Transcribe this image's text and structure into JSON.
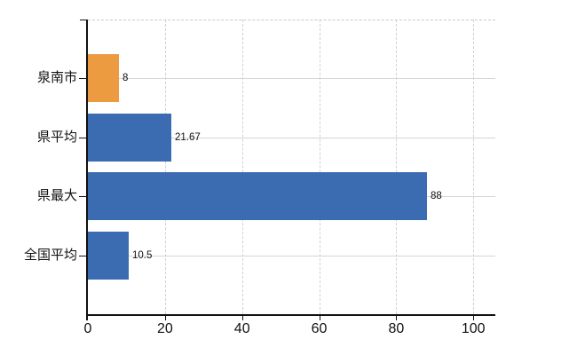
{
  "chart_data": {
    "type": "bar",
    "orientation": "horizontal",
    "title": "",
    "categories": [
      "泉南市",
      "県平均",
      "県最大",
      "全国平均"
    ],
    "values": [
      8,
      21.67,
      88,
      10.5
    ],
    "value_labels": [
      "8",
      "21.67",
      "88",
      "10.5"
    ],
    "bar_colors": [
      "#EC9B41",
      "#3B6CB1",
      "#3B6CB1",
      "#3B6CB1"
    ],
    "x_ticks": [
      0,
      20,
      40,
      60,
      80,
      100
    ],
    "x_tick_labels": [
      "0",
      "20",
      "40",
      "60",
      "80",
      "100"
    ],
    "xlim": [
      0,
      105.7
    ],
    "grid": {
      "vertical": "dashed",
      "horizontal": "solid",
      "top_border": "dashed"
    },
    "legend": "none",
    "colors": {
      "bar_highlight": "#EC9B41",
      "bar_default": "#3B6CB1",
      "axis": "#111111",
      "grid_vertical": "#d1d1d1",
      "grid_horizontal": "#d5d5d5",
      "top_border": "#c9c9c9",
      "text": "#111111",
      "background": "#ffffff"
    }
  }
}
